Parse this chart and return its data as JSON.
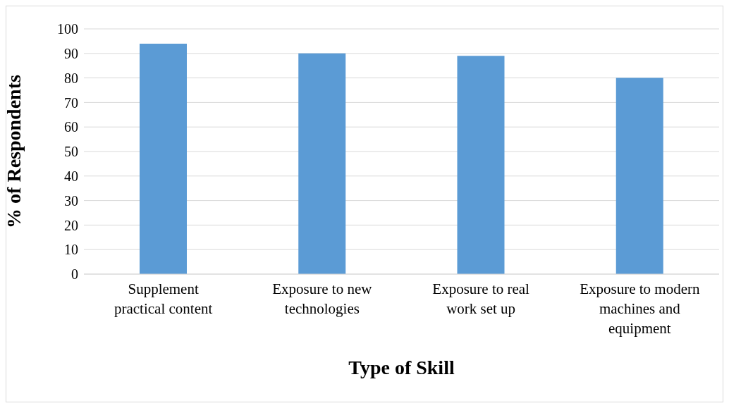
{
  "chart_data": {
    "type": "bar",
    "xlabel": "Type of Skill",
    "ylabel": "% of Respondents",
    "categories": [
      "Supplement practical content",
      "Exposure to new technologies",
      "Exposure to real work set up",
      "Exposure to modern machines and equipment"
    ],
    "values": [
      94,
      90,
      89,
      80
    ],
    "color": "#5b9bd5",
    "ylim": [
      0,
      100
    ],
    "yticks": [
      0,
      10,
      20,
      30,
      40,
      50,
      60,
      70,
      80,
      90,
      100
    ],
    "grid": "y"
  }
}
